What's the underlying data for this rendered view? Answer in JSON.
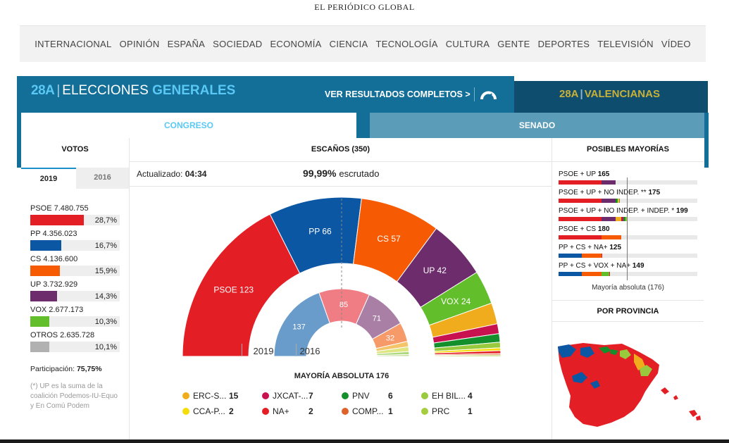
{
  "masthead": "EL PERIÓDICO GLOBAL",
  "nav": [
    "INTERNACIONAL",
    "OPINIÓN",
    "ESPAÑA",
    "SOCIEDAD",
    "ECONOMÍA",
    "CIENCIA",
    "TECNOLOGÍA",
    "CULTURA",
    "GENTE",
    "DEPORTES",
    "TELEVISIÓN",
    "VÍDEO"
  ],
  "banner": {
    "logo": "28A",
    "title_plain": "ELECCIONES",
    "title_bold": "GENERALES",
    "ver_resultados": "VER RESULTADOS COMPLETOS >",
    "valencianas_logo": "28A",
    "valencianas": "VALENCIANAS"
  },
  "tabs": {
    "congreso": "CONGRESO",
    "senado": "SENADO"
  },
  "votos": {
    "header": "VOTOS",
    "years": [
      "2019",
      "2016"
    ],
    "parties": [
      {
        "label": "PSOE 7.480.755",
        "pct": "28,7%",
        "share": 28.7,
        "color": "#e31e24"
      },
      {
        "label": "PP 4.356.023",
        "pct": "16,7%",
        "share": 16.7,
        "color": "#0b57a4"
      },
      {
        "label": "CS 4.136.600",
        "pct": "15,9%",
        "share": 15.9,
        "color": "#f65a03"
      },
      {
        "label": "UP 3.732.929",
        "pct": "14,3%",
        "share": 14.3,
        "color": "#6d2c6b"
      },
      {
        "label": "VOX 2.677.173",
        "pct": "10,3%",
        "share": 10.3,
        "color": "#63be2c"
      },
      {
        "label": "OTROS 2.635.728",
        "pct": "10,1%",
        "share": 10.1,
        "color": "#b1b1b1"
      }
    ],
    "participacion_label": "Participación:",
    "participacion_value": "75,75%",
    "footnote": "(*) UP es la suma de la coalición Podemos-IU-Equo y En Comú Podem"
  },
  "escanos": {
    "header": "ESCAÑOS (350)",
    "actualizado_label": "Actualizado:",
    "actualizado_value": "04:34",
    "escrutado_value": "99,99%",
    "escrutado_label": "escrutado",
    "outer_year": "2019",
    "inner_year": "2016",
    "mayoria_absoluta": "MAYORÍA ABSOLUTA 176",
    "seats_2019": [
      {
        "party": "PSOE",
        "seats": 123,
        "color": "#e31e24",
        "label": "PSOE 123"
      },
      {
        "party": "PP",
        "seats": 66,
        "color": "#0b57a4",
        "label": "PP 66"
      },
      {
        "party": "CS",
        "seats": 57,
        "color": "#f65a03",
        "label": "CS 57"
      },
      {
        "party": "UP",
        "seats": 42,
        "color": "#6d2c6b",
        "label": "UP 42"
      },
      {
        "party": "VOX",
        "seats": 24,
        "color": "#63be2c",
        "label": "VOX 24"
      },
      {
        "party": "ERC-S...",
        "seats": 15,
        "color": "#f0ac1c",
        "label": ""
      },
      {
        "party": "JXCAT-...",
        "seats": 7,
        "color": "#c8124f",
        "label": ""
      },
      {
        "party": "PNV",
        "seats": 6,
        "color": "#138f2b",
        "label": ""
      },
      {
        "party": "EH BIL...",
        "seats": 4,
        "color": "#99c93c",
        "label": ""
      },
      {
        "party": "CCA-P...",
        "seats": 2,
        "color": "#f5dc0a",
        "label": ""
      },
      {
        "party": "NA+",
        "seats": 2,
        "color": "#e31e24",
        "label": ""
      },
      {
        "party": "COMP...",
        "seats": 1,
        "color": "#e0622b",
        "label": ""
      },
      {
        "party": "PRC",
        "seats": 1,
        "color": "#a6cd3f",
        "label": ""
      }
    ],
    "seats_2016": [
      {
        "seats": 137,
        "color": "#6a9ccb",
        "label": "137"
      },
      {
        "seats": 85,
        "color": "#f07d84",
        "label": "85"
      },
      {
        "seats": 71,
        "color": "#a97fa6",
        "label": "71"
      },
      {
        "seats": 32,
        "color": "#f69a6a",
        "label": "32"
      },
      {
        "seats": 9,
        "color": "#f3c468",
        "label": ""
      },
      {
        "seats": 8,
        "color": "#dfe580",
        "label": ""
      },
      {
        "seats": 5,
        "color": "#aed87e",
        "label": ""
      },
      {
        "seats": 3,
        "color": "#c5dd9a",
        "label": ""
      }
    ],
    "legend": [
      {
        "name": "ERC-S...",
        "seats": "15",
        "color": "#f0ac1c"
      },
      {
        "name": "JXCAT-...",
        "seats": "7",
        "color": "#c8124f"
      },
      {
        "name": "PNV",
        "seats": "6",
        "color": "#138f2b"
      },
      {
        "name": "EH BIL...",
        "seats": "4",
        "color": "#99c93c"
      },
      {
        "name": "CCA-P...",
        "seats": "2",
        "color": "#f5dc0a"
      },
      {
        "name": "NA+",
        "seats": "2",
        "color": "#e31e24"
      },
      {
        "name": "COMP...",
        "seats": "1",
        "color": "#e0622b"
      },
      {
        "name": "PRC",
        "seats": "1",
        "color": "#a6cd3f"
      }
    ]
  },
  "mayorias": {
    "header": "POSIBLES MAYORÍAS",
    "combos": [
      {
        "label": "PSOE + UP",
        "total": "165",
        "parts": [
          [
            123,
            "#e31e24"
          ],
          [
            42,
            "#6d2c6b"
          ]
        ]
      },
      {
        "label": "PSOE + UP + NO INDEP. **",
        "total": "175",
        "parts": [
          [
            123,
            "#e31e24"
          ],
          [
            42,
            "#6d2c6b"
          ],
          [
            6,
            "#138f2b"
          ],
          [
            2,
            "#f5dc0a"
          ],
          [
            1,
            "#a6cd3f"
          ],
          [
            1,
            "#e0622b"
          ]
        ]
      },
      {
        "label": "PSOE + UP + NO INDEP. + INDEP. *",
        "total": "199",
        "parts": [
          [
            123,
            "#e31e24"
          ],
          [
            42,
            "#6d2c6b"
          ],
          [
            15,
            "#f0ac1c"
          ],
          [
            7,
            "#c8124f"
          ],
          [
            6,
            "#138f2b"
          ],
          [
            4,
            "#99c93c"
          ],
          [
            2,
            "#f5dc0a"
          ]
        ]
      },
      {
        "label": "PSOE + CS",
        "total": "180",
        "parts": [
          [
            123,
            "#e31e24"
          ],
          [
            57,
            "#f65a03"
          ]
        ]
      },
      {
        "label": "PP + CS + NA+",
        "total": "125",
        "parts": [
          [
            66,
            "#0b57a4"
          ],
          [
            57,
            "#f65a03"
          ],
          [
            2,
            "#e31e24"
          ]
        ]
      },
      {
        "label": "PP + CS + VOX + NA+",
        "total": "149",
        "parts": [
          [
            66,
            "#0b57a4"
          ],
          [
            57,
            "#f65a03"
          ],
          [
            24,
            "#63be2c"
          ],
          [
            2,
            "#e31e24"
          ]
        ]
      }
    ],
    "caption": "Mayoría absoluta (176)"
  },
  "provincia": {
    "header": "POR PROVINCIA"
  }
}
